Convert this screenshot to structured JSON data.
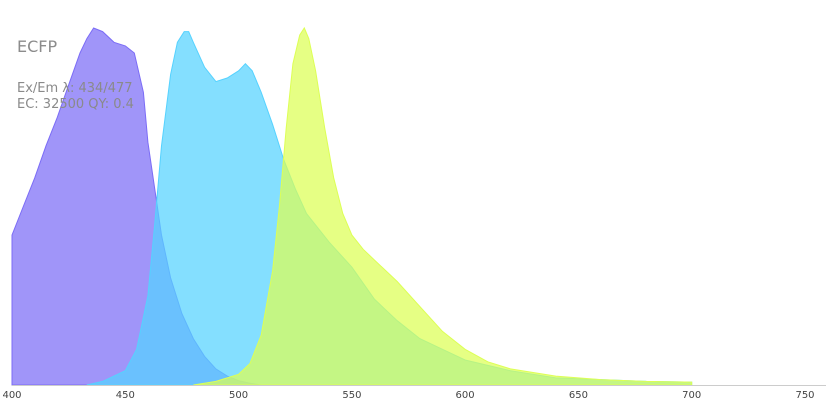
{
  "info": {
    "title": "ECFP",
    "ex_em": "Ex/Em λ: 434/477",
    "ec_qy": "EC: 32500  QY: 0.4"
  },
  "chart_data": {
    "type": "area",
    "title": "ECFP",
    "xlabel": "",
    "ylabel": "",
    "xlim": [
      400,
      760
    ],
    "ylim": [
      0,
      1
    ],
    "x_ticks": [
      400,
      450,
      500,
      550,
      600,
      650,
      700,
      750
    ],
    "grid": false,
    "legend": "none",
    "series": [
      {
        "color": "#7b6cf6",
        "x": [
          400,
          405,
          410,
          415,
          420,
          425,
          430,
          433,
          436,
          440,
          445,
          450,
          454,
          458,
          460,
          463,
          466,
          470,
          475,
          480,
          485,
          490,
          495,
          500,
          505,
          510
        ],
        "values": [
          0.42,
          0.5,
          0.58,
          0.67,
          0.75,
          0.84,
          0.93,
          0.97,
          1.0,
          0.99,
          0.96,
          0.95,
          0.93,
          0.82,
          0.68,
          0.55,
          0.42,
          0.3,
          0.2,
          0.13,
          0.08,
          0.045,
          0.025,
          0.012,
          0.005,
          0.0
        ]
      },
      {
        "color": "#55d2ff",
        "x": [
          433,
          440,
          450,
          455,
          460,
          463,
          466,
          470,
          473,
          476,
          478,
          480,
          485,
          490,
          495,
          500,
          503,
          506,
          510,
          515,
          520,
          525,
          530,
          540,
          550,
          560,
          570,
          580,
          590,
          600,
          620,
          640,
          660,
          680,
          700
        ],
        "values": [
          0.0,
          0.01,
          0.04,
          0.1,
          0.25,
          0.45,
          0.67,
          0.87,
          0.96,
          0.99,
          0.99,
          0.96,
          0.89,
          0.85,
          0.86,
          0.88,
          0.9,
          0.88,
          0.82,
          0.73,
          0.63,
          0.55,
          0.48,
          0.4,
          0.33,
          0.24,
          0.18,
          0.13,
          0.1,
          0.07,
          0.04,
          0.02,
          0.015,
          0.01,
          0.008
        ]
      },
      {
        "color": "#ddff55",
        "x": [
          480,
          490,
          500,
          505,
          510,
          515,
          518,
          521,
          524,
          527,
          529,
          531,
          534,
          538,
          542,
          546,
          550,
          555,
          560,
          570,
          580,
          590,
          600,
          610,
          620,
          640,
          660,
          680,
          700
        ],
        "values": [
          0.0,
          0.01,
          0.03,
          0.06,
          0.14,
          0.32,
          0.5,
          0.72,
          0.9,
          0.98,
          1.0,
          0.97,
          0.88,
          0.72,
          0.58,
          0.48,
          0.42,
          0.38,
          0.35,
          0.29,
          0.22,
          0.15,
          0.1,
          0.065,
          0.045,
          0.025,
          0.015,
          0.01,
          0.008
        ]
      }
    ]
  }
}
